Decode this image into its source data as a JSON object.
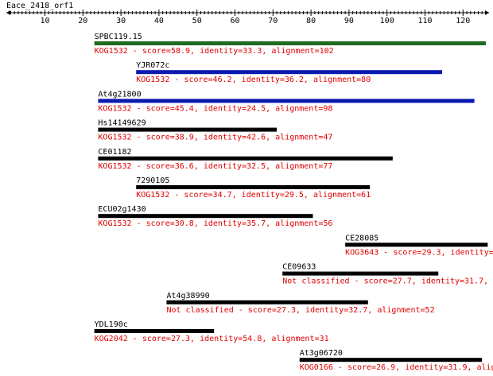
{
  "query": {
    "name": "Eace_2418_orf1",
    "length": 126,
    "ticks": [
      10,
      20,
      30,
      40,
      50,
      60,
      70,
      80,
      90,
      100,
      110,
      120
    ]
  },
  "colors": {
    "text": "#000000",
    "description": "#e00000",
    "bar_default": "#000000",
    "bar_green": "#1f6b1f",
    "bar_blue": "#0a1ab0"
  },
  "hits": [
    {
      "name": "SPBC119.15",
      "description": "KOG1532 - score=58.9, identity=33.3, alignment=102",
      "start": 23,
      "end": 126,
      "color": "#1f6b1f"
    },
    {
      "name": "YJR072c",
      "description": "KOG1532 - score=46.2, identity=36.2, alignment=80",
      "start": 34,
      "end": 114.5,
      "color": "#0a1ab0"
    },
    {
      "name": "At4g21800",
      "description": "KOG1532 - score=45.4, identity=24.5, alignment=98",
      "start": 24,
      "end": 123,
      "color": "#0a1ab0"
    },
    {
      "name": "Hs14149629",
      "description": "KOG1532 - score=38.9, identity=42.6, alignment=47",
      "start": 24,
      "end": 71,
      "color": "#000000"
    },
    {
      "name": "CE01182",
      "description": "KOG1532 - score=36.6, identity=32.5, alignment=77",
      "start": 24,
      "end": 101.5,
      "color": "#000000"
    },
    {
      "name": "7290105",
      "description": "KOG1532 - score=34.7, identity=29.5, alignment=61",
      "start": 34,
      "end": 95.5,
      "color": "#000000"
    },
    {
      "name": "ECU02g1430",
      "description": "KOG1532 - score=30.8, identity=35.7, alignment=56",
      "start": 24,
      "end": 80.5,
      "color": "#000000"
    },
    {
      "name": "CE28085",
      "description": "KOG3643 - score=29.3, identity=3",
      "start": 89,
      "end": 126.5,
      "color": "#000000"
    },
    {
      "name": "CE09633",
      "description": "Not classified - score=27.7, identity=31.7, ali",
      "start": 72.5,
      "end": 113.5,
      "color": "#000000"
    },
    {
      "name": "At4g38990",
      "description": "Not classified - score=27.3, identity=32.7, alignment=52",
      "start": 42,
      "end": 95,
      "color": "#000000"
    },
    {
      "name": "YDL190c",
      "description": "KOG2042 - score=27.3, identity=54.8, alignment=31",
      "start": 23,
      "end": 54.5,
      "color": "#000000"
    },
    {
      "name": "At3g06720",
      "description": "KOG0166 - score=26.9, identity=31.9, alig",
      "start": 77,
      "end": 125,
      "color": "#000000"
    }
  ]
}
